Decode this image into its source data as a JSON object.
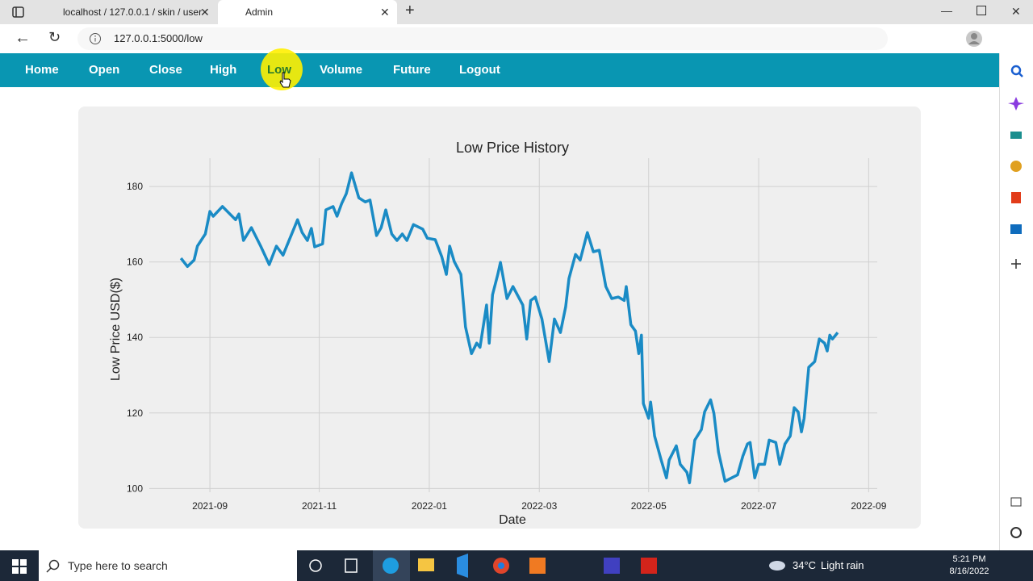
{
  "browser": {
    "tabs": [
      "localhost / 127.0.0.1 / skin / user",
      "Admin"
    ],
    "url": "127.0.0.1:5000/low"
  },
  "nav": {
    "items": [
      "Home",
      "Open",
      "Close",
      "High",
      "Low",
      "Volume",
      "Future",
      "Logout"
    ]
  },
  "chart_data": {
    "type": "line",
    "title": "Low Price History",
    "x_label": "Date",
    "y_label": "Low Price USD($)",
    "x": [
      2021.623,
      2021.633,
      2021.643,
      2021.648,
      2021.66,
      2021.667,
      2021.672,
      2021.686,
      2021.706,
      2021.711,
      2021.718,
      2021.73,
      2021.744,
      2021.757,
      2021.768,
      2021.778,
      2021.8,
      2021.807,
      2021.815,
      2021.821,
      2021.826,
      2021.838,
      2021.843,
      2021.854,
      2021.86,
      2021.867,
      2021.874,
      2021.882,
      2021.893,
      2021.903,
      2021.91,
      2021.92,
      2021.927,
      2021.934,
      2021.943,
      2021.951,
      2021.959,
      2021.966,
      2021.976,
      2021.99,
      2021.997,
      2022.009,
      2022.019,
      2022.026,
      2022.031,
      2022.038,
      2022.048,
      2022.055,
      2022.064,
      2022.072,
      2022.077,
      2022.087,
      2022.091,
      2022.096,
      2022.104,
      2022.108,
      2022.118,
      2022.127,
      2022.142,
      2022.148,
      2022.154,
      2022.161,
      2022.171,
      2022.182,
      2022.19,
      2022.199,
      2022.207,
      2022.212,
      2022.222,
      2022.229,
      2022.24,
      2022.249,
      2022.258,
      2022.268,
      2022.277,
      2022.287,
      2022.296,
      2022.299,
      2022.306,
      2022.313,
      2022.318,
      2022.322,
      2022.325,
      2022.333,
      2022.336,
      2022.342,
      2022.352,
      2022.36,
      2022.364,
      2022.375,
      2022.381,
      2022.391,
      2022.395,
      2022.403,
      2022.413,
      2022.418,
      2022.427,
      2022.432,
      2022.439,
      2022.449,
      2022.459,
      2022.468,
      2022.476,
      2022.483,
      2022.487,
      2022.494,
      2022.5,
      2022.509,
      2022.516,
      2022.526,
      2022.532,
      2022.54,
      2022.548,
      2022.554,
      2022.56,
      2022.565,
      2022.569,
      2022.576,
      2022.585,
      2022.592,
      2022.6,
      2022.604,
      2022.608,
      2022.612,
      2022.62
    ],
    "series": [
      {
        "color": "#1a8bc5",
        "values": [
          161.0,
          158.8,
          160.5,
          164.2,
          167.4,
          173.4,
          172.1,
          174.7,
          171.2,
          172.7,
          165.7,
          169.1,
          164.2,
          159.3,
          164.2,
          161.8,
          171.2,
          167.8,
          165.7,
          168.9,
          164.0,
          164.8,
          173.8,
          174.7,
          172.1,
          175.5,
          178.1,
          183.6,
          177.0,
          175.9,
          176.4,
          167.0,
          169.1,
          173.8,
          167.4,
          165.7,
          167.4,
          165.7,
          169.9,
          168.7,
          166.3,
          165.9,
          161.4,
          156.7,
          164.2,
          160.1,
          156.7,
          142.8,
          135.7,
          138.5,
          137.4,
          148.6,
          138.5,
          151.3,
          156.7,
          159.9,
          150.3,
          153.5,
          148.6,
          139.6,
          149.8,
          150.7,
          144.9,
          133.6,
          144.9,
          141.3,
          148.1,
          155.6,
          162.0,
          160.5,
          167.8,
          162.7,
          163.1,
          153.5,
          150.3,
          150.7,
          149.8,
          153.5,
          143.4,
          141.7,
          135.7,
          140.6,
          122.5,
          118.6,
          122.9,
          113.9,
          107.5,
          102.8,
          107.5,
          111.3,
          106.4,
          104.3,
          101.5,
          112.8,
          115.6,
          120.3,
          123.5,
          119.9,
          109.6,
          101.9,
          102.8,
          103.6,
          108.6,
          111.8,
          112.2,
          102.8,
          106.4,
          106.4,
          112.8,
          112.2,
          106.4,
          111.8,
          113.9,
          121.4,
          120.3,
          115.0,
          118.6,
          132.1,
          133.6,
          139.6,
          138.5,
          136.4,
          140.6,
          139.6,
          141.3
        ]
      }
    ],
    "xlim": [
      2021.575,
      2022.68
    ],
    "xticks": [
      {
        "value": 2021.667,
        "label": "2021-09"
      },
      {
        "value": 2021.833,
        "label": "2021-11"
      },
      {
        "value": 2022.0,
        "label": "2022-01"
      },
      {
        "value": 2022.167,
        "label": "2022-03"
      },
      {
        "value": 2022.333,
        "label": "2022-05"
      },
      {
        "value": 2022.5,
        "label": "2022-07"
      },
      {
        "value": 2022.667,
        "label": "2022-09"
      }
    ],
    "ylim": [
      99,
      187.5
    ],
    "yticks": [
      100,
      120,
      140,
      160,
      180
    ],
    "grid": true
  },
  "taskbar": {
    "search": "Type here to search",
    "temperature": "34°C",
    "weather": "Light rain",
    "time": "5:21 PM",
    "date": "8/16/2022"
  }
}
